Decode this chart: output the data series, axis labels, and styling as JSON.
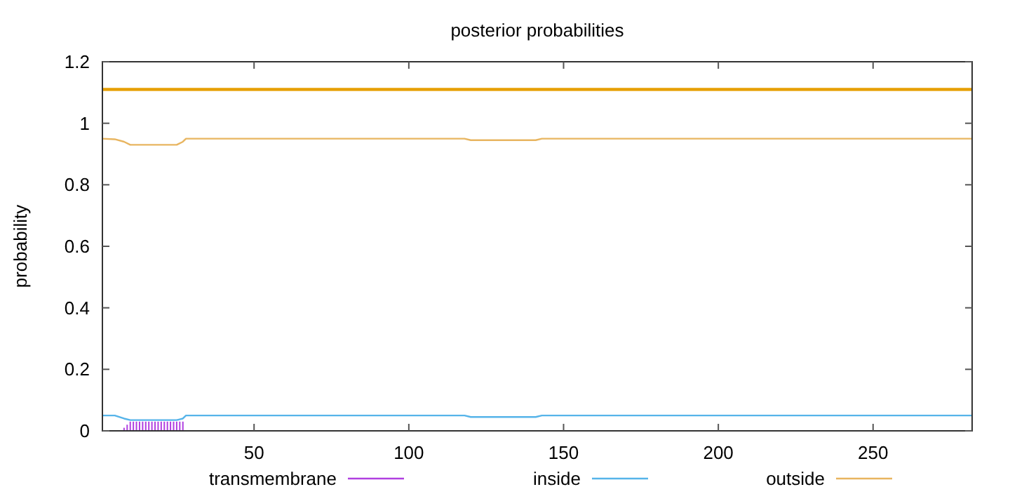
{
  "chart_data": {
    "type": "line",
    "title": "posterior probabilities",
    "ylabel": "probability",
    "xlim": [
      1,
      282
    ],
    "xticks": [
      50,
      100,
      150,
      200,
      250
    ],
    "ylim": [
      0,
      1.2
    ],
    "yticks": [
      0,
      0.2,
      0.4,
      0.6,
      0.8,
      1,
      1.2
    ],
    "grid": false,
    "legend": "bottom",
    "marker": "none",
    "line_style": "solid",
    "bands": [
      {
        "axis": "y",
        "from": 1.105,
        "to": 1.115,
        "color": "#e69f00"
      }
    ],
    "series": [
      {
        "name": "transmembrane",
        "type": "bar",
        "color": "#b040e0",
        "x": [
          8,
          9,
          10,
          11,
          12,
          13,
          14,
          15,
          16,
          17,
          18,
          19,
          20,
          21,
          22,
          23,
          24,
          25,
          26,
          27
        ],
        "values": [
          0.01,
          0.02,
          0.03,
          0.03,
          0.03,
          0.03,
          0.03,
          0.03,
          0.03,
          0.03,
          0.03,
          0.03,
          0.03,
          0.03,
          0.03,
          0.03,
          0.03,
          0.03,
          0.03,
          0.03
        ]
      },
      {
        "name": "inside",
        "color": "#56b4e9",
        "x": [
          1,
          5,
          8,
          10,
          25,
          27,
          28,
          118,
          120,
          141,
          143,
          282
        ],
        "values": [
          0.05,
          0.05,
          0.04,
          0.035,
          0.035,
          0.04,
          0.05,
          0.05,
          0.045,
          0.045,
          0.05,
          0.05
        ]
      },
      {
        "name": "outside",
        "color": "#e8b560",
        "x": [
          1,
          5,
          8,
          10,
          25,
          27,
          28,
          118,
          120,
          141,
          143,
          282
        ],
        "values": [
          0.95,
          0.948,
          0.94,
          0.93,
          0.93,
          0.94,
          0.95,
          0.95,
          0.945,
          0.945,
          0.95,
          0.95
        ]
      }
    ]
  }
}
